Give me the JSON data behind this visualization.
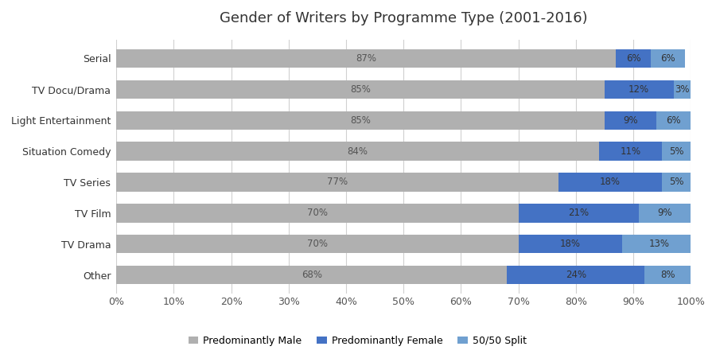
{
  "title": "Gender of Writers by Programme Type (2001-2016)",
  "categories": [
    "Other",
    "TV Drama",
    "TV Film",
    "TV Series",
    "Situation Comedy",
    "Light Entertainment",
    "TV Docu/Drama",
    "Serial"
  ],
  "predominantly_male": [
    68,
    70,
    70,
    77,
    84,
    85,
    85,
    87
  ],
  "predominantly_female": [
    24,
    18,
    21,
    18,
    11,
    9,
    12,
    6
  ],
  "fifty_fifty": [
    8,
    13,
    9,
    5,
    5,
    6,
    3,
    6
  ],
  "color_male": "#b0b0b0",
  "color_female": "#4472c4",
  "color_fifty": "#70a0d0",
  "label_color_male": "#555555",
  "label_color_female": "#333333",
  "label_color_fifty": "#333333",
  "legend_labels": [
    "Predominantly Male",
    "Predominantly Female",
    "50/50 Split"
  ],
  "background_color": "#ffffff",
  "bar_height": 0.6,
  "title_fontsize": 13,
  "label_fontsize": 8.5,
  "tick_fontsize": 9
}
